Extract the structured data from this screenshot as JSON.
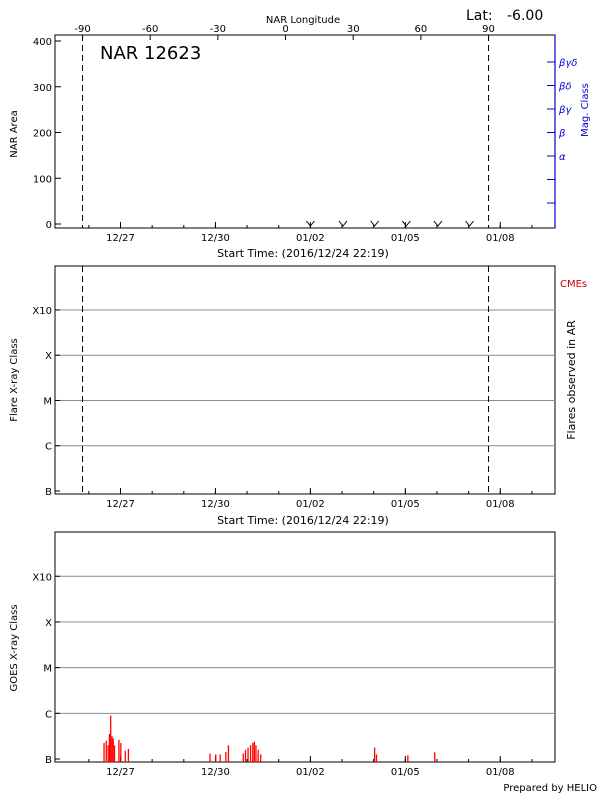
{
  "colors": {
    "axis": "#000000",
    "grid": "#8c8c8c",
    "mag_class": "#0000cc",
    "cme": "#cc0000",
    "goes": "#ff0000"
  },
  "header": {
    "lat_label": "Lat:",
    "lat_value": "-6.00",
    "nar_title": "NAR 12623",
    "footer": "Prepared by HELIO"
  },
  "time_axis": {
    "start_label": "Start Time: (2016/12/24 22:19)",
    "range_days": [
      0,
      15.8
    ],
    "ticks": [
      {
        "label": "12/27",
        "day": 2.07
      },
      {
        "label": "12/30",
        "day": 5.07
      },
      {
        "label": "01/02",
        "day": 8.07
      },
      {
        "label": "01/05",
        "day": 11.07
      },
      {
        "label": "01/08",
        "day": 14.07
      }
    ]
  },
  "chart_data": [
    {
      "type": "line",
      "title": "NAR 12623",
      "xlabel": "Start Time: (2016/12/24 22:19)",
      "ylabel": "NAR Area",
      "ylim": [
        0,
        400
      ],
      "y_ticks": [
        0,
        100,
        200,
        300,
        400
      ],
      "top_axis_label": "NAR Longitude",
      "top_axis_ticks": [
        "-90",
        "-60",
        "-30",
        "0",
        "30",
        "60",
        "90"
      ],
      "right_axis_label": "Mag. Class",
      "right_axis_ticks": [
        "α",
        "β",
        "βγ",
        "βδ",
        "βγδ"
      ],
      "limb_crossings_days": [
        0.87,
        13.7
      ],
      "markers_days": [
        8.07,
        9.1,
        10.1,
        11.1,
        12.1,
        13.1
      ]
    },
    {
      "type": "scatter",
      "xlabel": "Start Time: (2016/12/24 22:19)",
      "ylabel": "Flare X-ray Class",
      "right_axis_label": "Flares observed in AR",
      "legend": "CMEs",
      "y_ticks": [
        "B",
        "C",
        "M",
        "X",
        "X10"
      ],
      "limb_crossings_days": [
        0.87,
        13.7
      ],
      "points": []
    },
    {
      "type": "bar",
      "ylabel": "GOES X-ray Class",
      "y_ticks": [
        "B",
        "C",
        "M",
        "X",
        "X10"
      ],
      "bursts": [
        {
          "day": 1.55,
          "level": 0.35
        },
        {
          "day": 1.62,
          "level": 0.4
        },
        {
          "day": 1.68,
          "level": 0.3
        },
        {
          "day": 1.72,
          "level": 0.55
        },
        {
          "day": 1.76,
          "level": 0.95
        },
        {
          "day": 1.8,
          "level": 0.5
        },
        {
          "day": 1.84,
          "level": 0.45
        },
        {
          "day": 1.88,
          "level": 0.3
        },
        {
          "day": 2.02,
          "level": 0.42
        },
        {
          "day": 2.08,
          "level": 0.35
        },
        {
          "day": 2.22,
          "level": 0.18
        },
        {
          "day": 2.32,
          "level": 0.22
        },
        {
          "day": 4.9,
          "level": 0.12
        },
        {
          "day": 5.08,
          "level": 0.1
        },
        {
          "day": 5.22,
          "level": 0.1
        },
        {
          "day": 5.4,
          "level": 0.15
        },
        {
          "day": 5.48,
          "level": 0.3
        },
        {
          "day": 5.95,
          "level": 0.12
        },
        {
          "day": 6.02,
          "level": 0.2
        },
        {
          "day": 6.1,
          "level": 0.25
        },
        {
          "day": 6.18,
          "level": 0.3
        },
        {
          "day": 6.25,
          "level": 0.35
        },
        {
          "day": 6.3,
          "level": 0.38
        },
        {
          "day": 6.35,
          "level": 0.3
        },
        {
          "day": 6.42,
          "level": 0.2
        },
        {
          "day": 6.5,
          "level": 0.1
        },
        {
          "day": 10.1,
          "level": 0.25
        },
        {
          "day": 10.16,
          "level": 0.1
        },
        {
          "day": 11.15,
          "level": 0.08
        },
        {
          "day": 12.0,
          "level": 0.15
        }
      ]
    }
  ]
}
